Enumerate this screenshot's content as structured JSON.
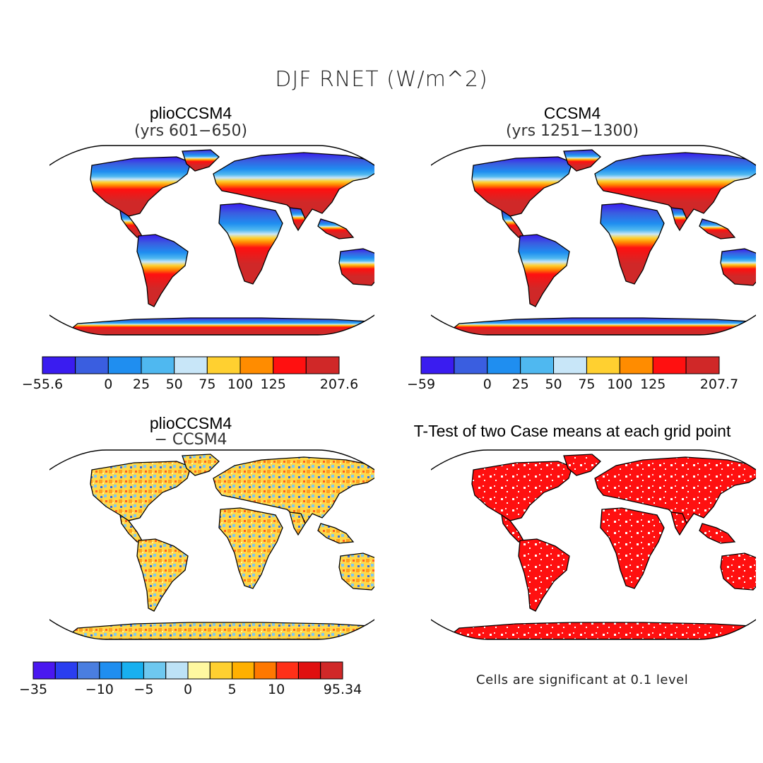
{
  "title": "DJF RNET (W/m^2)",
  "panels": [
    {
      "id": "p1",
      "title": "plioCCSM4",
      "subtitle": "(yrs 601−650)"
    },
    {
      "id": "p2",
      "title": "CCSM4",
      "subtitle": "(yrs 1251−1300)"
    },
    {
      "id": "p3",
      "title": "plioCCSM4",
      "subtitle": "− CCSM4"
    },
    {
      "id": "p4",
      "title": "T-Test of two Case means at each grid point",
      "subtitle": ""
    }
  ],
  "colorbars": [
    {
      "id": "cb1",
      "colors": [
        "#3a1cf0",
        "#3a5ee0",
        "#1f8ef0",
        "#4fb8f0",
        "#c8e6f8",
        "#ffd030",
        "#ff8c00",
        "#ff1010",
        "#d02828"
      ],
      "labels": [
        "−55.6",
        "0",
        "25",
        "50",
        "75",
        "100",
        "125",
        "207.6"
      ],
      "label_slots": [
        0,
        2,
        3,
        4,
        5,
        6,
        7,
        9
      ]
    },
    {
      "id": "cb2",
      "colors": [
        "#3a1cf0",
        "#3a5ee0",
        "#1f8ef0",
        "#4fb8f0",
        "#c8e6f8",
        "#ffd030",
        "#ff8c00",
        "#ff1010",
        "#d02828"
      ],
      "labels": [
        "−59",
        "0",
        "25",
        "50",
        "75",
        "100",
        "125",
        "207.7"
      ],
      "label_slots": [
        0,
        2,
        3,
        4,
        5,
        6,
        7,
        9
      ]
    },
    {
      "id": "cb3",
      "colors": [
        "#4a18f0",
        "#2a3ef0",
        "#4a7ee0",
        "#1f8ef0",
        "#18b0f0",
        "#6ec8f0",
        "#bde2f6",
        "#fff8a0",
        "#ffd030",
        "#ffb000",
        "#ff7800",
        "#ff3018",
        "#e01010",
        "#d02828"
      ],
      "labels": [
        "−35",
        "−10",
        "−5",
        "0",
        "5",
        "10",
        "95.34"
      ],
      "label_slots": [
        0,
        3,
        5,
        7,
        9,
        11,
        14
      ]
    }
  ],
  "footnote": "Cells are significant at 0.1 level",
  "colors": {
    "map_outline": "#000000",
    "significant": "#ff1010"
  }
}
